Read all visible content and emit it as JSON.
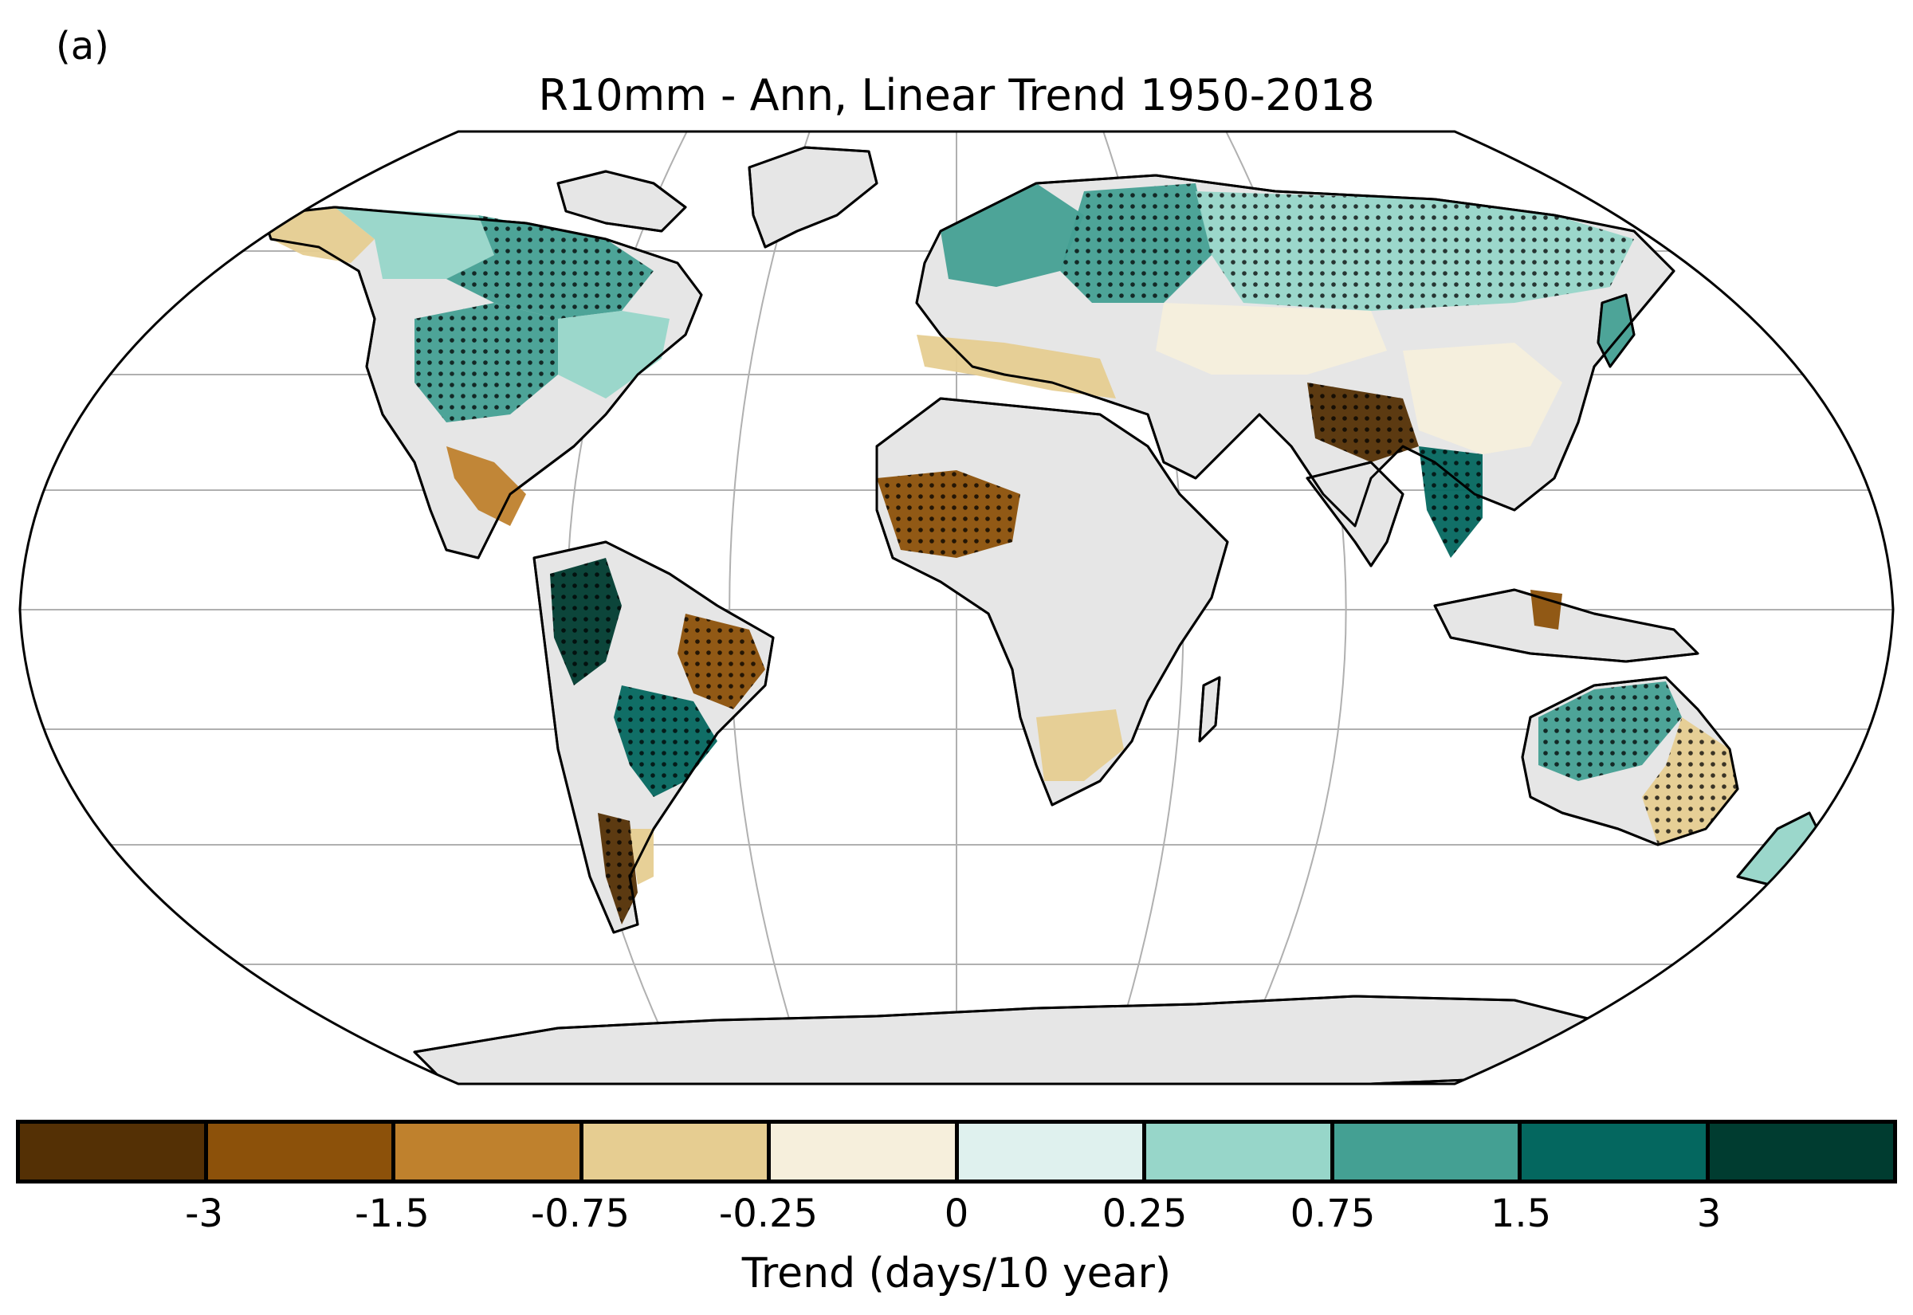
{
  "panel_label": "(a)",
  "title": "R10mm - Ann, Linear Trend 1950-2018",
  "map": {
    "projection": "Robinson",
    "no_data_color": "#e6e6e6",
    "ocean_color": "#ffffff",
    "coastline_color": "#000000",
    "graticule_color": "#b0b0b0",
    "stippling": "dots mark statistically significant trends",
    "regions": [
      {
        "name": "Alaska",
        "class": 3
      },
      {
        "name": "Western Canada",
        "class": 6
      },
      {
        "name": "Canada Interior",
        "class": 7
      },
      {
        "name": "Central United States",
        "class": 7
      },
      {
        "name": "Eastern United States",
        "class": 6
      },
      {
        "name": "Central America",
        "class": 2
      },
      {
        "name": "Northern South America",
        "class": 9
      },
      {
        "name": "Northeast Brazil",
        "class": 1
      },
      {
        "name": "Southeast South America",
        "class": 8
      },
      {
        "name": "Southern Chile",
        "class": 0
      },
      {
        "name": "Patagonia",
        "class": 3
      },
      {
        "name": "Northern Europe",
        "class": 7
      },
      {
        "name": "Western Russia",
        "class": 7
      },
      {
        "name": "Mediterranean",
        "class": 3
      },
      {
        "name": "West Africa (Sahel)",
        "class": 1
      },
      {
        "name": "Southern Africa",
        "class": 3
      },
      {
        "name": "Siberia",
        "class": 6
      },
      {
        "name": "Central Asia",
        "class": 4
      },
      {
        "name": "Northern India",
        "class": 0
      },
      {
        "name": "Southeast Asia",
        "class": 8
      },
      {
        "name": "Eastern China",
        "class": 4
      },
      {
        "name": "Japan",
        "class": 7
      },
      {
        "name": "Borneo",
        "class": 1
      },
      {
        "name": "Northern Australia",
        "class": 7
      },
      {
        "name": "Eastern Australia",
        "class": 3
      },
      {
        "name": "New Zealand",
        "class": 6
      }
    ]
  },
  "colorbar": {
    "label": "Trend (days/10 year)",
    "colors": [
      "#543005",
      "#8c510a",
      "#bf812d",
      "#e6cd91",
      "#f6efdc",
      "#dff1ee",
      "#97d6c9",
      "#44a093",
      "#04675f",
      "#003c30"
    ],
    "ticks": [
      "-3",
      "-1.5",
      "-0.75",
      "-0.25",
      "0",
      "0.25",
      "0.75",
      "1.5",
      "3"
    ]
  }
}
